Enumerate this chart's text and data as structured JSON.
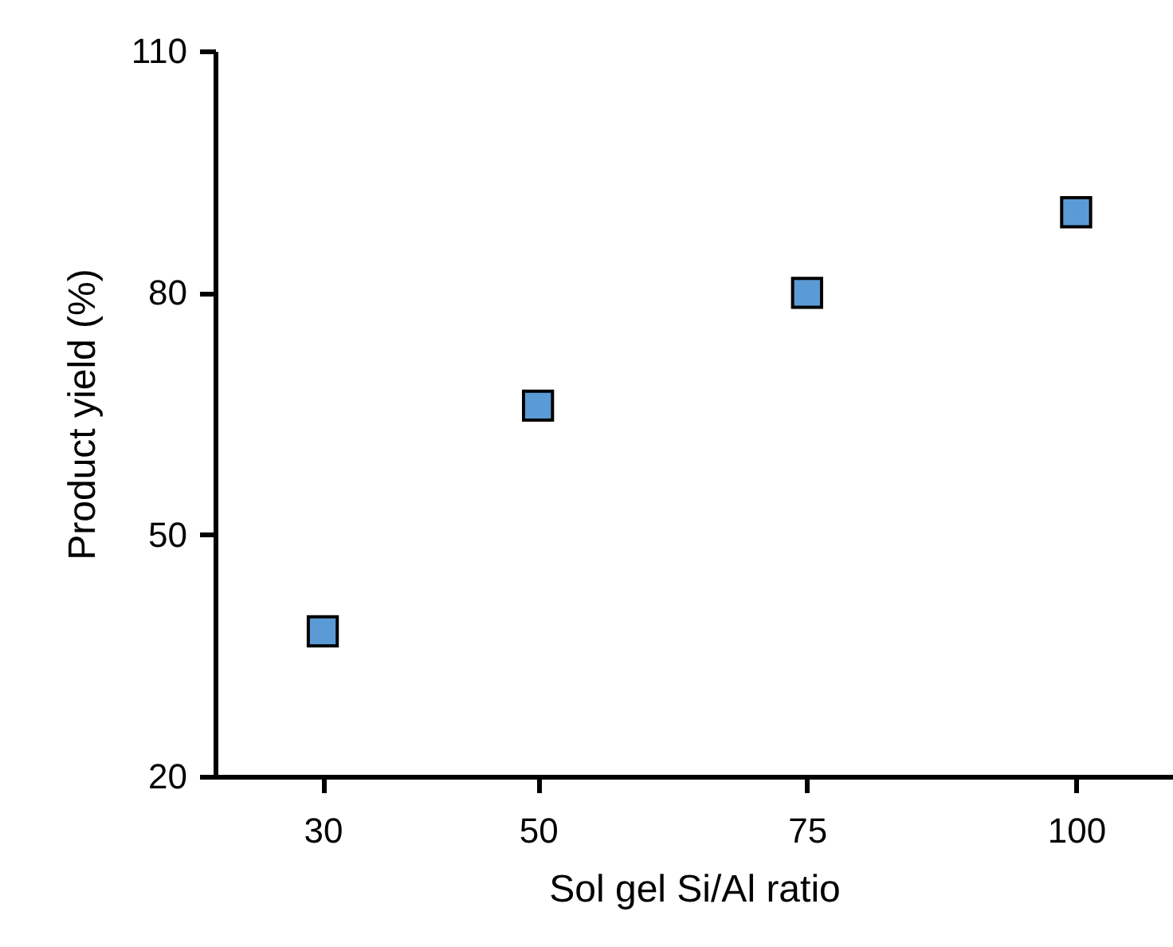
{
  "chart_data": {
    "type": "scatter",
    "xlabel": "Sol gel Si/Al ratio",
    "ylabel": "Product yield (%)",
    "x": [
      30,
      50,
      75,
      100
    ],
    "series": [
      {
        "color": "#5b9bd5",
        "values": [
          38,
          66,
          80,
          90
        ]
      }
    ],
    "marker": "square",
    "xlim": [
      20,
      109
    ],
    "xticks": [
      30,
      50,
      75,
      100
    ],
    "ylim": [
      20,
      110
    ],
    "yticks": [
      20,
      50,
      80,
      110
    ],
    "grid": false,
    "legend": false
  }
}
